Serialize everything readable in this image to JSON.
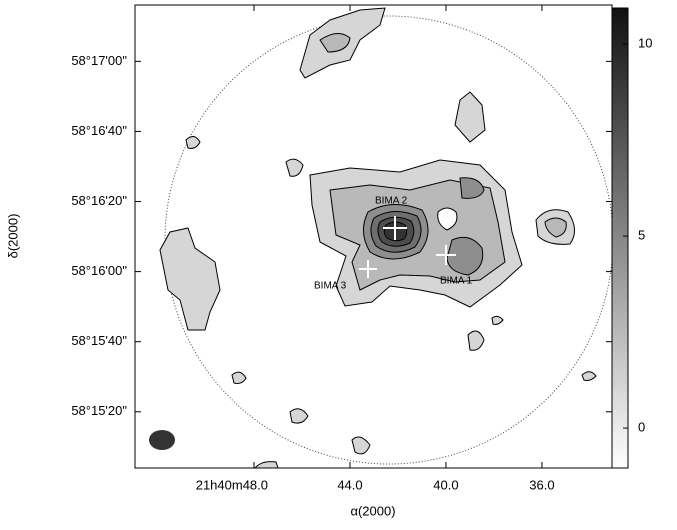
{
  "chart_data": {
    "type": "contour-map",
    "xlabel": "α(2000)",
    "ylabel": "δ(2000)",
    "xlim": [
      52.96,
      33.08
    ],
    "xticks": [
      {
        "value": 48,
        "label": "21h40m48.0"
      },
      {
        "value": 44,
        "label": "44.0"
      },
      {
        "value": 40,
        "label": "40.0"
      },
      {
        "value": 36,
        "label": "36.0"
      }
    ],
    "ylim": [
      58.2511,
      58.2878
    ],
    "yticks": [
      {
        "value": 58.283333,
        "label": "58°17'00\""
      },
      {
        "value": 58.277778,
        "label": "58°16'40\""
      },
      {
        "value": 58.272222,
        "label": "58°16'20\""
      },
      {
        "value": 58.266667,
        "label": "58°16'00\""
      },
      {
        "value": 58.261111,
        "label": "58°15'40\""
      },
      {
        "value": 58.255556,
        "label": "58°15'20\""
      }
    ],
    "clim": [
      -1.04,
      10.94
    ],
    "cticks": [
      0,
      5,
      10
    ],
    "annotations": [
      "BIMA 2",
      "BIMA 3",
      "BIMA 1"
    ]
  }
}
